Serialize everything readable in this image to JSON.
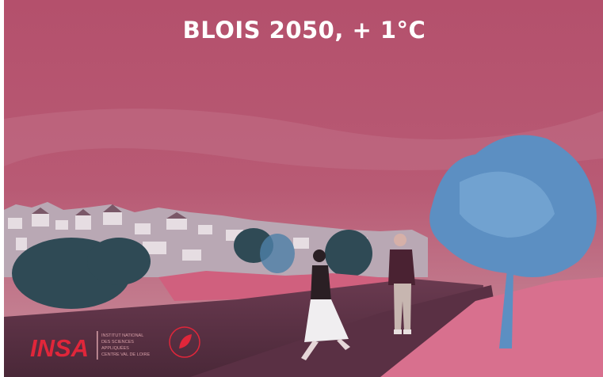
{
  "title": "BLOIS 2050, + 1°C",
  "logo": {
    "name": "INSA",
    "lines": [
      "INSTITUT NATIONAL",
      "DES SCIENCES",
      "APPLIQUÉES",
      "CENTRE VAL DE LOIRE"
    ]
  }
}
